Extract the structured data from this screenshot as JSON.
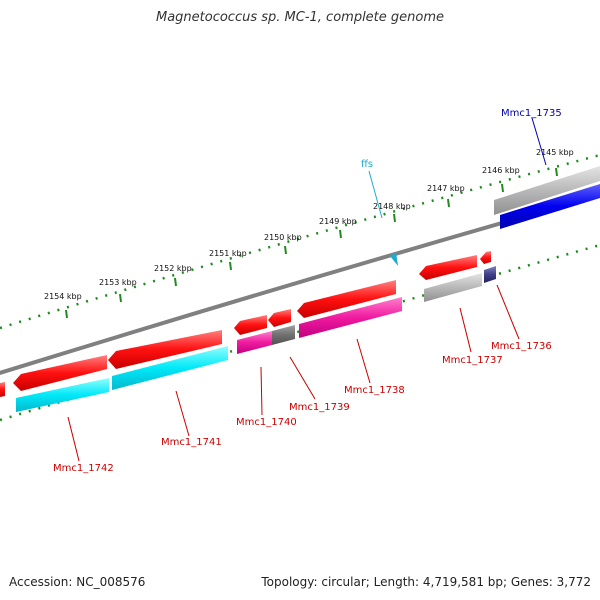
{
  "title": "Magnetococcus sp. MC-1, complete genome",
  "accession": "Accession: NC_008576",
  "topology": "Topology: circular; Length: 4,719,581 bp; Genes: 3,772",
  "colors": {
    "backbone": "#808080",
    "tick": "#1f8a1f",
    "forward_cds": "#0000e0",
    "reverse_cds": "#ee0000",
    "trna": "#22aacc",
    "gene_label": "#cc0000",
    "forward_label": "#0000aa",
    "cyan_feature": "#00e0f0",
    "magenta_feature": "#ee1aa0",
    "gray_feature": "#b4b4b4",
    "dark_gray_feature": "#707070",
    "navy_feature": "#404080"
  },
  "scale_labels": [
    "2154 kbp",
    "2153 kbp",
    "2152 kbp",
    "2151 kbp",
    "2150 kbp",
    "2149 kbp",
    "2148 kbp",
    "2147 kbp",
    "2146 kbp",
    "2145 kbp"
  ],
  "gene_labels": [
    "Mmc1_1735",
    "ffs",
    "Mmc1_1736",
    "Mmc1_1737",
    "Mmc1_1738",
    "Mmc1_1739",
    "Mmc1_1740",
    "Mmc1_1741",
    "Mmc1_1742"
  ]
}
